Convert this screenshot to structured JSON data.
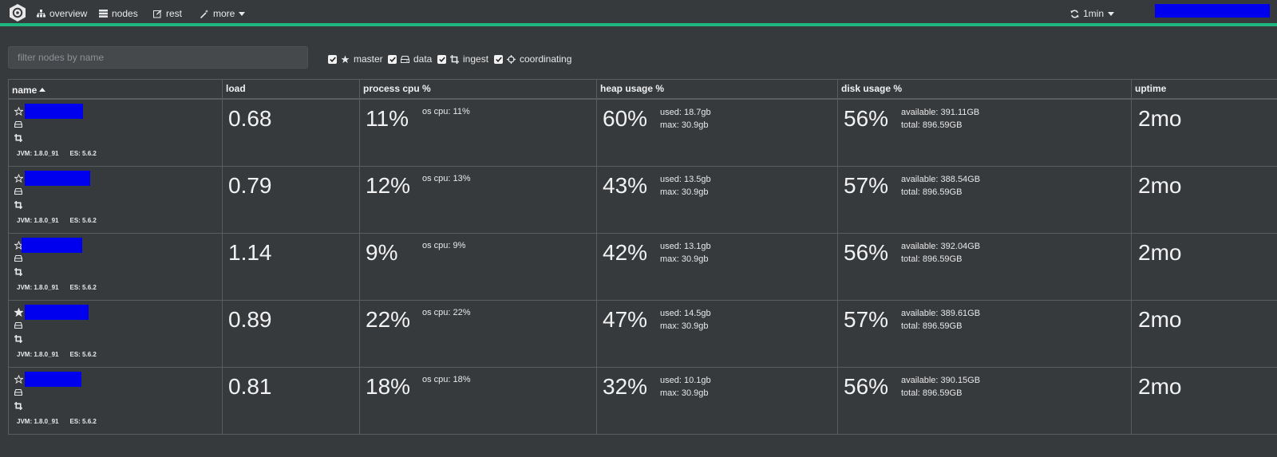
{
  "navbar": {
    "items": [
      {
        "label": "overview",
        "icon": "sitemap-icon"
      },
      {
        "label": "nodes",
        "icon": "server-icon"
      },
      {
        "label": "rest",
        "icon": "edit-icon"
      },
      {
        "label": "more",
        "icon": "magic-wand-icon"
      }
    ],
    "refresh_label": "1min",
    "accent_color": "#1fb77f"
  },
  "filter": {
    "placeholder": "filter nodes by name",
    "roles": [
      {
        "label": "master",
        "checked": true,
        "icon": "star-icon"
      },
      {
        "label": "data",
        "checked": true,
        "icon": "hdd-icon"
      },
      {
        "label": "ingest",
        "checked": true,
        "icon": "crop-icon"
      },
      {
        "label": "coordinating",
        "checked": true,
        "icon": "crosshairs-icon"
      }
    ]
  },
  "table": {
    "headers": {
      "name": "name",
      "load": "load",
      "cpu": "process cpu %",
      "heap": "heap usage %",
      "disk": "disk usage %",
      "uptime": "uptime"
    },
    "rows": [
      {
        "master_elected": false,
        "jvm": "JVM: 1.8.0_91",
        "es": "ES: 5.6.2",
        "load": "0.68",
        "cpu": "11%",
        "os_cpu": "os cpu: 11%",
        "heap": "60%",
        "heap_used": "used: 18.7gb",
        "heap_max": "max: 30.9gb",
        "disk": "56%",
        "disk_avail": "available: 391.11GB",
        "disk_total": "total: 896.59GB",
        "uptime": "2mo"
      },
      {
        "master_elected": false,
        "jvm": "JVM: 1.8.0_91",
        "es": "ES: 5.6.2",
        "load": "0.79",
        "cpu": "12%",
        "os_cpu": "os cpu: 13%",
        "heap": "43%",
        "heap_used": "used: 13.5gb",
        "heap_max": "max: 30.9gb",
        "disk": "57%",
        "disk_avail": "available: 388.54GB",
        "disk_total": "total: 896.59GB",
        "uptime": "2mo"
      },
      {
        "master_elected": false,
        "jvm": "JVM: 1.8.0_91",
        "es": "ES: 5.6.2",
        "load": "1.14",
        "cpu": "9%",
        "os_cpu": "os cpu: 9%",
        "heap": "42%",
        "heap_used": "used: 13.1gb",
        "heap_max": "max: 30.9gb",
        "disk": "56%",
        "disk_avail": "available: 392.04GB",
        "disk_total": "total: 896.59GB",
        "uptime": "2mo"
      },
      {
        "master_elected": true,
        "jvm": "JVM: 1.8.0_91",
        "es": "ES: 5.6.2",
        "load": "0.89",
        "cpu": "22%",
        "os_cpu": "os cpu: 22%",
        "heap": "47%",
        "heap_used": "used: 14.5gb",
        "heap_max": "max: 30.9gb",
        "disk": "57%",
        "disk_avail": "available: 389.61GB",
        "disk_total": "total: 896.59GB",
        "uptime": "2mo"
      },
      {
        "master_elected": false,
        "jvm": "JVM: 1.8.0_91",
        "es": "ES: 5.6.2",
        "load": "0.81",
        "cpu": "18%",
        "os_cpu": "os cpu: 18%",
        "heap": "32%",
        "heap_used": "used: 10.1gb",
        "heap_max": "max: 30.9gb",
        "disk": "56%",
        "disk_avail": "available: 390.15GB",
        "disk_total": "total: 896.59GB",
        "uptime": "2mo"
      }
    ]
  }
}
